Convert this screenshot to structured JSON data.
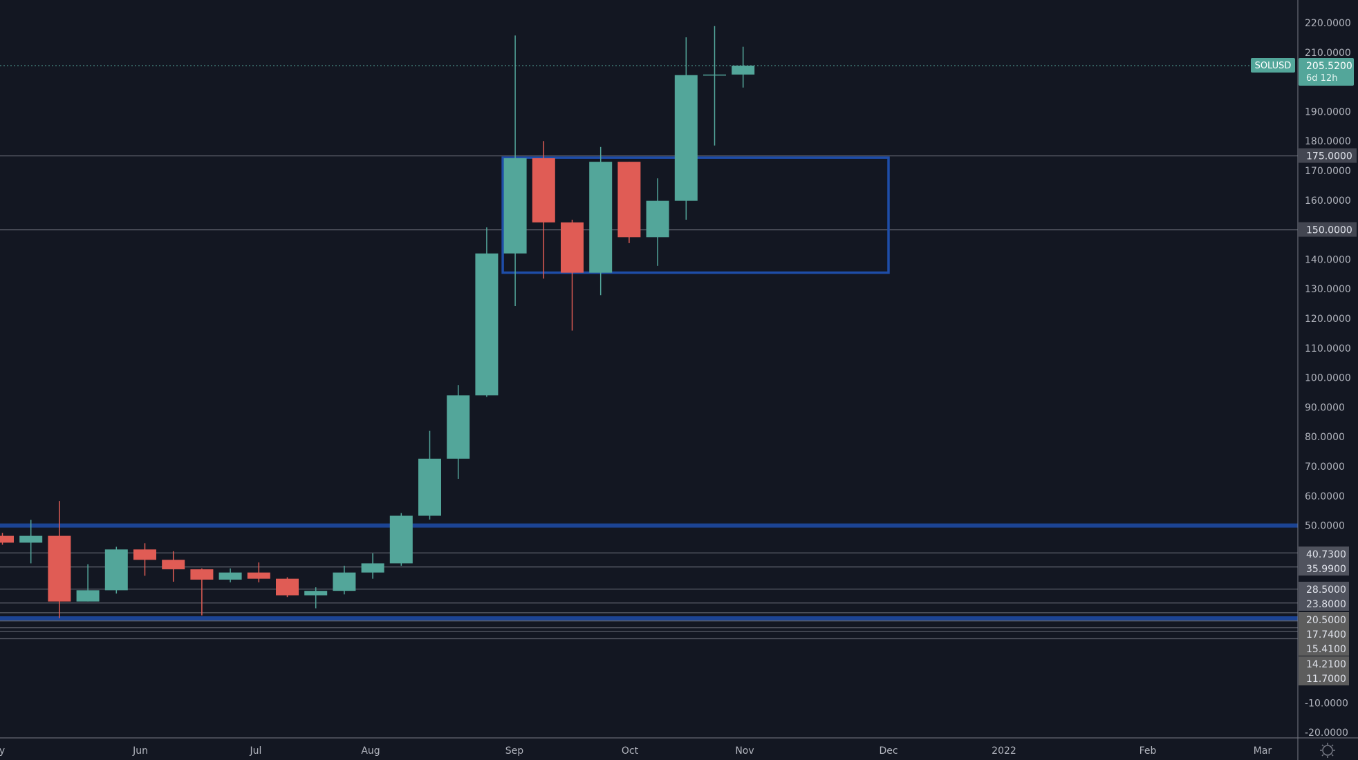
{
  "chart_data": {
    "type": "candlestick",
    "symbol": "SOLUSD",
    "interval_note": "weekly",
    "last_price": "205.5200",
    "countdown": "6d 12h",
    "ylim": [
      -20,
      220
    ],
    "grid": false,
    "colors": {
      "up": "#53a69a",
      "down": "#e05c55",
      "background": "#131722",
      "zone": "#1e4da8",
      "level_line": "#5d606b",
      "current_price": "#53a69a"
    },
    "candles": [
      {
        "o": 46.5,
        "h": 47.5,
        "l": 43.5,
        "c": 44.2
      },
      {
        "o": 44.2,
        "h": 51.9,
        "l": 37.2,
        "c": 46.5
      },
      {
        "o": 46.5,
        "h": 58.3,
        "l": 18.7,
        "c": 24.3
      },
      {
        "o": 24.3,
        "h": 36.9,
        "l": 24.3,
        "c": 28.1
      },
      {
        "o": 28.1,
        "h": 42.8,
        "l": 27.0,
        "c": 41.9
      },
      {
        "o": 41.9,
        "h": 44.0,
        "l": 33.0,
        "c": 38.4
      },
      {
        "o": 38.4,
        "h": 41.3,
        "l": 31.0,
        "c": 35.2
      },
      {
        "o": 35.2,
        "h": 35.5,
        "l": 19.6,
        "c": 31.7
      },
      {
        "o": 31.7,
        "h": 35.5,
        "l": 30.8,
        "c": 34.1
      },
      {
        "o": 34.1,
        "h": 37.5,
        "l": 30.8,
        "c": 32.0
      },
      {
        "o": 32.0,
        "h": 32.5,
        "l": 25.8,
        "c": 26.4
      },
      {
        "o": 26.4,
        "h": 29.1,
        "l": 22.0,
        "c": 27.9
      },
      {
        "o": 27.9,
        "h": 36.4,
        "l": 26.7,
        "c": 34.1
      },
      {
        "o": 34.1,
        "h": 40.6,
        "l": 32.0,
        "c": 37.2
      },
      {
        "o": 37.2,
        "h": 54.2,
        "l": 36.4,
        "c": 53.3
      },
      {
        "o": 53.3,
        "h": 82.0,
        "l": 52.0,
        "c": 72.6
      },
      {
        "o": 72.6,
        "h": 97.5,
        "l": 65.8,
        "c": 94.0
      },
      {
        "o": 94.0,
        "h": 150.8,
        "l": 93.5,
        "c": 142.0
      },
      {
        "o": 142.0,
        "h": 215.7,
        "l": 124.2,
        "c": 174.2
      },
      {
        "o": 174.2,
        "h": 180.0,
        "l": 133.5,
        "c": 152.5
      },
      {
        "o": 152.5,
        "h": 153.4,
        "l": 115.9,
        "c": 135.5
      },
      {
        "o": 135.5,
        "h": 178.0,
        "l": 127.9,
        "c": 173.0
      },
      {
        "o": 173.0,
        "h": 173.0,
        "l": 145.5,
        "c": 147.5
      },
      {
        "o": 147.5,
        "h": 167.4,
        "l": 137.8,
        "c": 159.8
      },
      {
        "o": 159.8,
        "h": 215.1,
        "l": 153.4,
        "c": 202.3
      },
      {
        "o": 202.3,
        "h": 218.9,
        "l": 178.5,
        "c": 202.5
      },
      {
        "o": 202.5,
        "h": 211.9,
        "l": 198.1,
        "c": 205.52
      }
    ],
    "zone_box": {
      "top": 174.4,
      "bottom": 135.5,
      "from_candle": 18,
      "to_month": "Dec"
    },
    "thick_levels": [
      50.0,
      18.6
    ],
    "levels": [
      175.0,
      150.0,
      40.73,
      35.99,
      28.5,
      23.8,
      20.5,
      17.74,
      15.41,
      14.21,
      11.7
    ],
    "y_ticks": [
      "220.0000",
      "210.0000",
      "190.0000",
      "180.0000",
      "170.0000",
      "160.0000",
      "140.0000",
      "130.0000",
      "120.0000",
      "110.0000",
      "100.0000",
      "90.0000",
      "80.0000",
      "70.0000",
      "60.0000",
      "50.0000",
      "-10.0000",
      "-20.0000"
    ],
    "level_labels": [
      "175.0000",
      "150.0000",
      "40.7300",
      "35.9900",
      "28.5000",
      "23.8000",
      "20.5000",
      "17.7400",
      "15.4100",
      "14.2100",
      "11.7000"
    ],
    "x_ticks": [
      "y",
      "Jun",
      "Jul",
      "Aug",
      "Sep",
      "Oct",
      "Nov",
      "Dec",
      "2022",
      "Feb",
      "Mar"
    ]
  },
  "icons": {
    "settings": "gear-icon"
  }
}
